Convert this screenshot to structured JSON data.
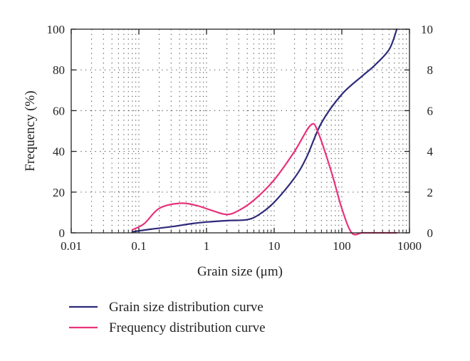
{
  "chart_data": {
    "type": "line",
    "title": "",
    "xlabel": "Grain size (μm)",
    "ylabel": "Frequency (%)",
    "x_scale": "log",
    "xlim": [
      0.01,
      1000
    ],
    "ylim": [
      0,
      100
    ],
    "y2lim": [
      0,
      10
    ],
    "x_ticks": [
      0.01,
      0.1,
      1,
      10,
      100,
      1000
    ],
    "x_tick_labels": [
      "0.01",
      "0.1",
      "1",
      "10",
      "100",
      "1000"
    ],
    "y_ticks": [
      0,
      20,
      40,
      60,
      80,
      100
    ],
    "y_tick_labels": [
      "0",
      "20",
      "40",
      "60",
      "80",
      "100"
    ],
    "y2_ticks": [
      0,
      2,
      4,
      6,
      8,
      10
    ],
    "y2_tick_labels": [
      "0",
      "2",
      "4",
      "6",
      "8",
      "10"
    ],
    "grid": true,
    "legend_position": "bottom-left",
    "series": [
      {
        "name": "Grain size distribution curve",
        "axis": "left",
        "color": "#2e2a7a",
        "points": [
          [
            0.08,
            0.5
          ],
          [
            0.15,
            1.8
          ],
          [
            0.3,
            3
          ],
          [
            0.6,
            4.5
          ],
          [
            1,
            5.3
          ],
          [
            2,
            6
          ],
          [
            4,
            6.5
          ],
          [
            6,
            9
          ],
          [
            10,
            15
          ],
          [
            20,
            27
          ],
          [
            30,
            37
          ],
          [
            50,
            54
          ],
          [
            100,
            68
          ],
          [
            200,
            77
          ],
          [
            300,
            82
          ],
          [
            500,
            90
          ],
          [
            650,
            100
          ]
        ]
      },
      {
        "name": "Frequency distribution curve",
        "axis": "right",
        "color": "#e8327a",
        "points": [
          [
            0.08,
            0.15
          ],
          [
            0.12,
            0.45
          ],
          [
            0.2,
            1.2
          ],
          [
            0.4,
            1.45
          ],
          [
            0.7,
            1.35
          ],
          [
            1.2,
            1.1
          ],
          [
            2,
            0.9
          ],
          [
            3,
            1.1
          ],
          [
            5,
            1.6
          ],
          [
            10,
            2.6
          ],
          [
            20,
            4.0
          ],
          [
            35,
            5.3
          ],
          [
            45,
            4.9
          ],
          [
            70,
            3
          ],
          [
            100,
            1.2
          ],
          [
            140,
            0
          ],
          [
            200,
            0
          ],
          [
            300,
            0
          ],
          [
            650,
            0
          ]
        ]
      }
    ]
  }
}
